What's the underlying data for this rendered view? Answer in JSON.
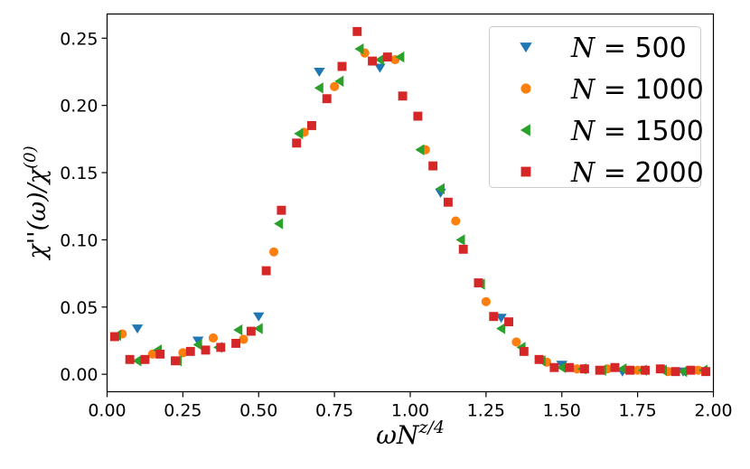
{
  "chart_data": {
    "type": "scatter",
    "title": "",
    "xlabel": "ωN^{z/4}",
    "ylabel": "χ''(ω)/χ^{(0)}",
    "xlim": [
      0.0,
      2.0
    ],
    "ylim": [
      -0.013,
      0.268
    ],
    "xticks": [
      "0.00",
      "0.25",
      "0.50",
      "0.75",
      "1.00",
      "1.25",
      "1.50",
      "1.75",
      "2.00"
    ],
    "yticks": [
      "0.00",
      "0.05",
      "0.10",
      "0.15",
      "0.20",
      "0.25"
    ],
    "legend_position": "top-right",
    "grid": false,
    "series": [
      {
        "name": "N = 500",
        "legend_N": "N",
        "legend_value": "500",
        "marker": "triangle-down",
        "color": "#1f77b4",
        "x": [
          0.1,
          0.3,
          0.5,
          0.7,
          0.9,
          1.1,
          1.3,
          1.5,
          1.7,
          1.9
        ],
        "y": [
          0.034,
          0.025,
          0.043,
          0.225,
          0.228,
          0.135,
          0.042,
          0.007,
          0.002,
          0.002
        ]
      },
      {
        "name": "N = 1000",
        "legend_N": "N",
        "legend_value": "1000",
        "marker": "circle",
        "color": "#ff7f0e",
        "x": [
          0.05,
          0.15,
          0.25,
          0.35,
          0.45,
          0.55,
          0.65,
          0.75,
          0.85,
          0.95,
          1.05,
          1.15,
          1.25,
          1.35,
          1.45,
          1.55,
          1.65,
          1.75,
          1.85,
          1.95
        ],
        "y": [
          0.03,
          0.015,
          0.016,
          0.027,
          0.026,
          0.091,
          0.18,
          0.214,
          0.239,
          0.234,
          0.167,
          0.114,
          0.054,
          0.024,
          0.009,
          0.004,
          0.004,
          0.003,
          0.002,
          0.003
        ]
      },
      {
        "name": "N = 1500",
        "legend_N": "N",
        "legend_value": "1500",
        "marker": "triangle-left",
        "color": "#2ca02c",
        "x": [
          0.033,
          0.1,
          0.167,
          0.233,
          0.3,
          0.367,
          0.433,
          0.5,
          0.567,
          0.633,
          0.7,
          0.767,
          0.833,
          0.9,
          0.967,
          1.033,
          1.1,
          1.167,
          1.233,
          1.3,
          1.367,
          1.433,
          1.5,
          1.567,
          1.633,
          1.7,
          1.767,
          1.833,
          1.9,
          1.967
        ],
        "y": [
          0.029,
          0.01,
          0.018,
          0.01,
          0.022,
          0.02,
          0.033,
          0.034,
          0.112,
          0.179,
          0.213,
          0.218,
          0.242,
          0.234,
          0.236,
          0.167,
          0.138,
          0.1,
          0.067,
          0.034,
          0.02,
          0.01,
          0.005,
          0.004,
          0.003,
          0.004,
          0.003,
          0.003,
          0.002,
          0.003
        ]
      },
      {
        "name": "N = 2000",
        "legend_N": "N",
        "legend_value": "2000",
        "marker": "square",
        "color": "#d62728",
        "x": [
          0.025,
          0.075,
          0.125,
          0.175,
          0.225,
          0.275,
          0.325,
          0.375,
          0.425,
          0.475,
          0.525,
          0.575,
          0.625,
          0.675,
          0.725,
          0.775,
          0.825,
          0.875,
          0.925,
          0.975,
          1.025,
          1.075,
          1.125,
          1.175,
          1.225,
          1.275,
          1.325,
          1.375,
          1.425,
          1.475,
          1.525,
          1.575,
          1.625,
          1.675,
          1.725,
          1.775,
          1.825,
          1.875,
          1.925,
          1.975
        ],
        "y": [
          0.028,
          0.011,
          0.011,
          0.015,
          0.01,
          0.017,
          0.018,
          0.02,
          0.023,
          0.032,
          0.077,
          0.122,
          0.172,
          0.185,
          0.205,
          0.229,
          0.255,
          0.233,
          0.236,
          0.207,
          0.192,
          0.155,
          0.128,
          0.093,
          0.068,
          0.043,
          0.039,
          0.017,
          0.011,
          0.005,
          0.005,
          0.004,
          0.003,
          0.005,
          0.003,
          0.003,
          0.004,
          0.002,
          0.003,
          0.002
        ]
      }
    ]
  }
}
